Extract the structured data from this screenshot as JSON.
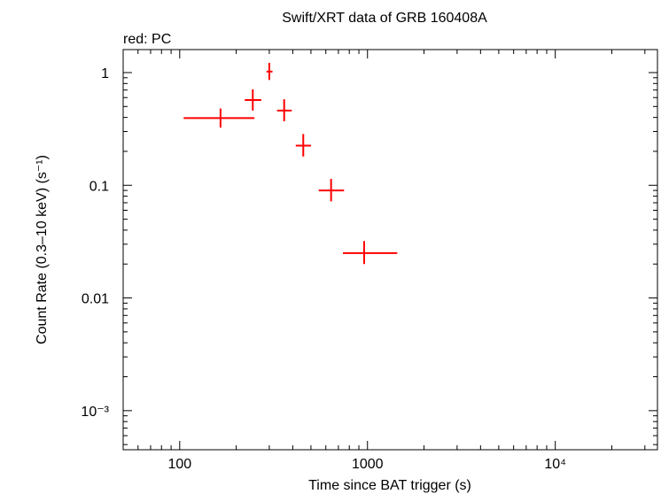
{
  "chart_data": {
    "type": "scatter",
    "title": "Swift/XRT data of GRB 160408A",
    "subtitle": "red: PC",
    "xlabel": "Time since BAT trigger (s)",
    "ylabel": "Count Rate (0.3–10 keV) (s⁻¹)",
    "x_scale": "log",
    "y_scale": "log",
    "xlim": [
      50,
      35000
    ],
    "ylim": [
      0.00045,
      1.6
    ],
    "grid": false,
    "x_ticks": [
      {
        "value": 100,
        "label": "100"
      },
      {
        "value": 1000,
        "label": "1000"
      },
      {
        "value": 10000,
        "label": "10⁴"
      }
    ],
    "y_ticks": [
      {
        "value": 1,
        "label": "1"
      },
      {
        "value": 0.1,
        "label": "0.1"
      },
      {
        "value": 0.01,
        "label": "0.01"
      },
      {
        "value": 0.001,
        "label": "10⁻³"
      }
    ],
    "series": [
      {
        "color": "#ff0000",
        "points": [
          {
            "x": 165,
            "y": 0.395,
            "xlo": 105,
            "xhi": 250,
            "ylo": 0.325,
            "yhi": 0.48
          },
          {
            "x": 245,
            "y": 0.57,
            "xlo": 222,
            "xhi": 272,
            "ylo": 0.46,
            "yhi": 0.71
          },
          {
            "x": 300,
            "y": 1.02,
            "xlo": 290,
            "xhi": 312,
            "ylo": 0.86,
            "yhi": 1.22
          },
          {
            "x": 360,
            "y": 0.46,
            "xlo": 330,
            "xhi": 395,
            "ylo": 0.37,
            "yhi": 0.58
          },
          {
            "x": 455,
            "y": 0.225,
            "xlo": 415,
            "xhi": 500,
            "ylo": 0.18,
            "yhi": 0.285
          },
          {
            "x": 640,
            "y": 0.09,
            "xlo": 550,
            "xhi": 750,
            "ylo": 0.072,
            "yhi": 0.114
          },
          {
            "x": 960,
            "y": 0.025,
            "xlo": 740,
            "xhi": 1440,
            "ylo": 0.02,
            "yhi": 0.032
          }
        ]
      }
    ]
  }
}
